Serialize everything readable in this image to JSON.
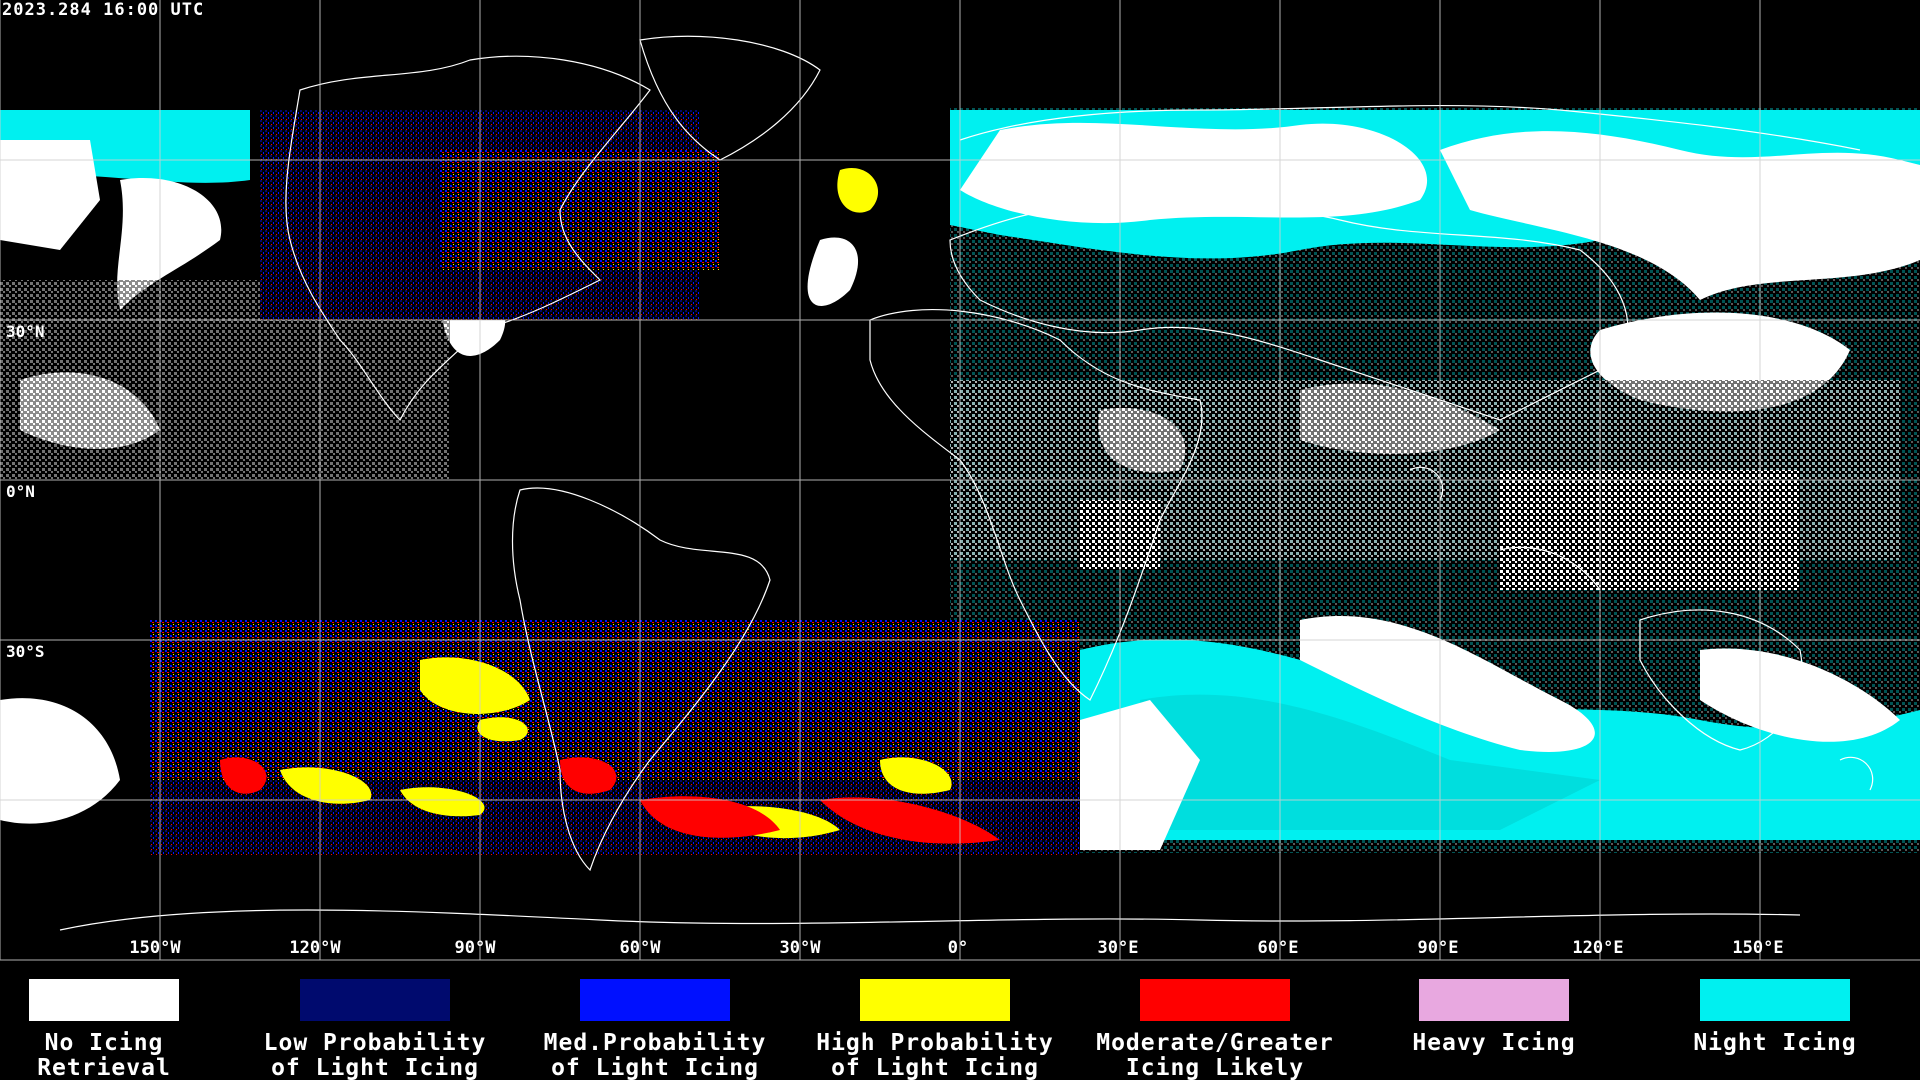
{
  "timestamp": "2023.284 16:00 UTC",
  "lat_labels": [
    "30°N",
    "0°N",
    "30°S"
  ],
  "lon_labels": [
    "150°W",
    "120°W",
    "90°W",
    "60°W",
    "30°W",
    "0°",
    "30°E",
    "60°E",
    "90°E",
    "120°E",
    "150°E"
  ],
  "legend": [
    {
      "label": "No Icing\nRetrieval",
      "color": "#ffffff"
    },
    {
      "label": "Low Probability\nof Light Icing",
      "color": "#000a6e"
    },
    {
      "label": "Med.Probability\nof Light Icing",
      "color": "#0010ff"
    },
    {
      "label": "High Probability\nof Light Icing",
      "color": "#ffff00"
    },
    {
      "label": "Moderate/Greater\nIcing Likely",
      "color": "#ff0000"
    },
    {
      "label": "Heavy Icing",
      "color": "#e8a8e0"
    },
    {
      "label": "Night Icing",
      "color": "#00f0f0"
    }
  ]
}
